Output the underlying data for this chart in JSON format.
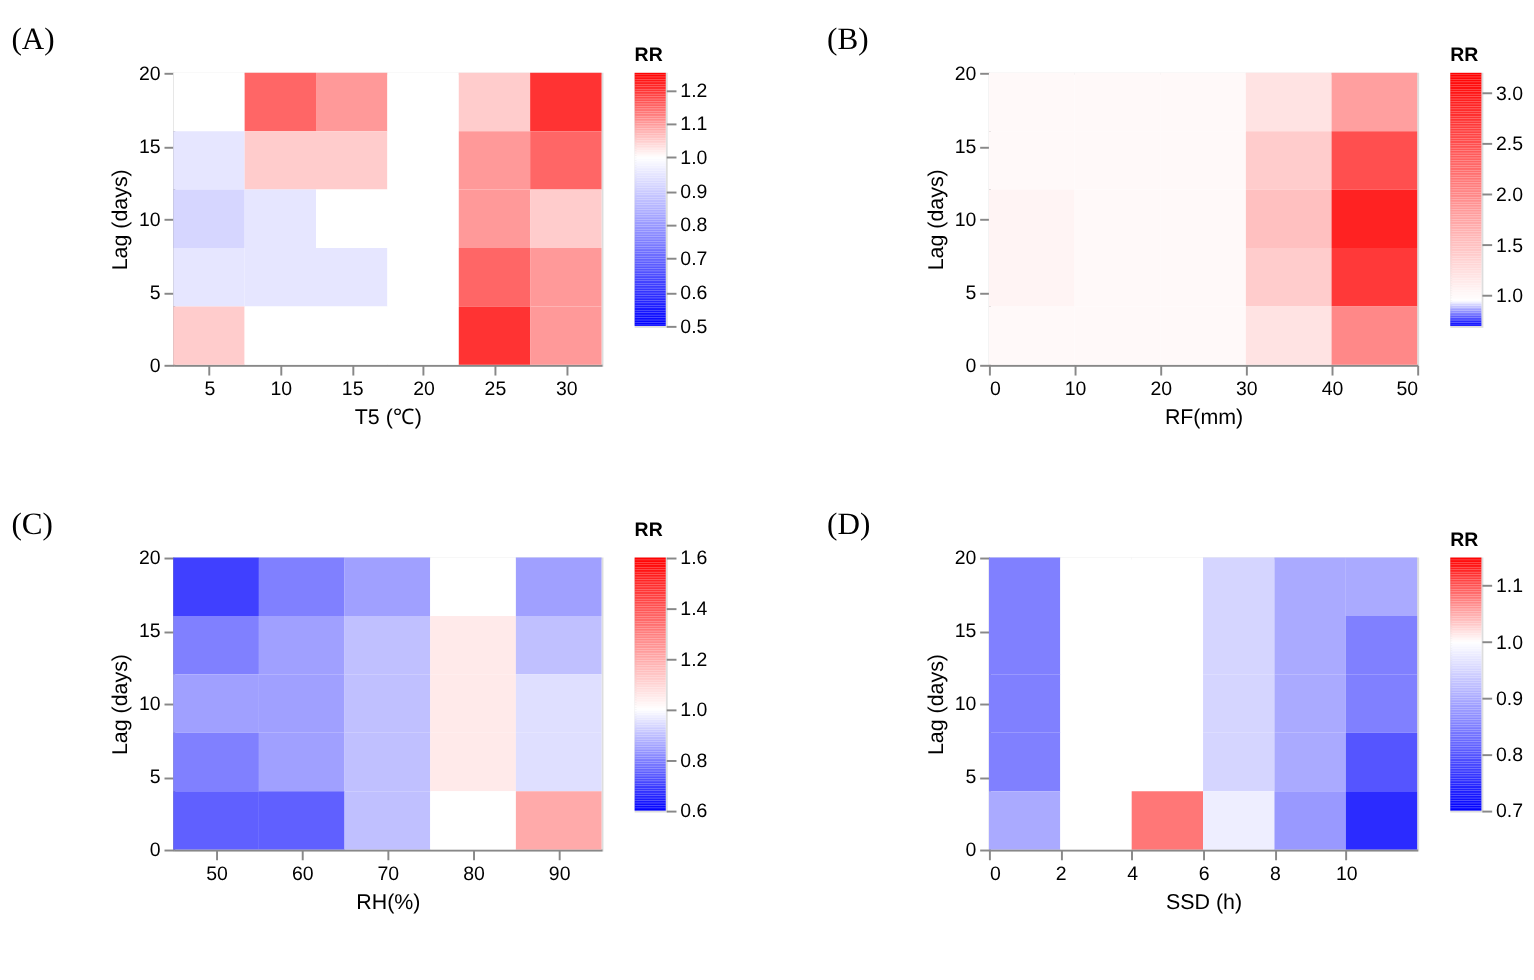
{
  "chart_data": [
    {
      "type": "heatmap",
      "title": "(A)",
      "xlabel": "T5 (℃)",
      "ylabel": "Lag (days)",
      "clabel": "RR",
      "x": [
        5,
        10,
        15,
        20,
        25,
        30
      ],
      "y": [
        18,
        14,
        10,
        6,
        2
      ],
      "cells": [
        [
          1.0,
          1.15,
          1.1,
          1.0,
          1.05,
          1.2
        ],
        [
          0.95,
          1.05,
          1.05,
          1.0,
          1.1,
          1.15
        ],
        [
          0.92,
          0.95,
          1.0,
          1.0,
          1.1,
          1.05
        ],
        [
          0.95,
          0.95,
          0.95,
          1.0,
          1.15,
          1.1
        ],
        [
          1.05,
          1.0,
          1.0,
          1.0,
          1.2,
          1.1
        ]
      ],
      "xlim": [
        2.5,
        32.5
      ],
      "xticks": [
        5,
        10,
        15,
        20,
        25,
        30
      ],
      "ylim": [
        0,
        20
      ],
      "yticks": [
        0,
        5,
        10,
        15,
        20
      ],
      "clim": [
        0.5,
        1.25
      ],
      "cticks": [
        0.5,
        0.6,
        0.7,
        0.8,
        0.9,
        {
          "value": 1,
          "label": "1.0"
        },
        1.1,
        1.2
      ],
      "colors": [
        "#0000ff",
        "#8080ff",
        "#ffffff",
        "#ff0000"
      ]
    },
    {
      "type": "heatmap",
      "title": "(B)",
      "xlabel": "RF(mm)",
      "ylabel": "Lag (days)",
      "clabel": "RR",
      "x": [
        5,
        15,
        25,
        35,
        45
      ],
      "y": [
        18,
        14,
        10,
        6,
        2
      ],
      "cells": [
        [
          1.0,
          1.0,
          1.0,
          1.2,
          1.8
        ],
        [
          1.0,
          1.0,
          1.0,
          1.4,
          2.5
        ],
        [
          1.05,
          1.0,
          1.0,
          1.5,
          2.9
        ],
        [
          1.05,
          1.0,
          1.0,
          1.4,
          2.7
        ],
        [
          1.0,
          1.0,
          1.0,
          1.2,
          2.0
        ]
      ],
      "xlim": [
        0,
        50
      ],
      "xticks": [
        0,
        10,
        20,
        30,
        40,
        50
      ],
      "ylim": [
        0,
        20
      ],
      "yticks": [
        0,
        5,
        10,
        15,
        20
      ],
      "clim": [
        0.7,
        3.2
      ],
      "cticks": [
        {
          "value": 1,
          "label": "1.0"
        },
        1.5,
        {
          "value": 2,
          "label": "2.0"
        },
        2.5,
        {
          "value": 3,
          "label": "3.0"
        }
      ],
      "colors": [
        "#0000ff",
        "#ffffff",
        "#ffe3e3",
        "#ffc6c6",
        "#ffaaaa",
        "#ff8e8e",
        "#ff7171",
        "#ff5555",
        "#ff3939",
        "#ff1c1c",
        "#ff0000"
      ]
    },
    {
      "type": "heatmap",
      "title": "(C)",
      "xlabel": "RH(%)",
      "ylabel": "Lag (days)",
      "clabel": "RR",
      "x": [
        50,
        60,
        70,
        80,
        90
      ],
      "y": [
        18,
        14,
        10,
        6,
        2
      ],
      "cells": [
        [
          0.7,
          0.8,
          0.85,
          1.0,
          0.85
        ],
        [
          0.8,
          0.85,
          0.9,
          1.05,
          0.9
        ],
        [
          0.85,
          0.85,
          0.9,
          1.05,
          0.95
        ],
        [
          0.8,
          0.85,
          0.9,
          1.05,
          0.95
        ],
        [
          0.75,
          0.75,
          0.9,
          1.0,
          1.2
        ]
      ],
      "xlim": [
        45,
        95
      ],
      "xticks": [
        50,
        60,
        70,
        80,
        90
      ],
      "ylim": [
        0,
        20
      ],
      "yticks": [
        0,
        5,
        10,
        15,
        20
      ],
      "clim": [
        0.6,
        1.6
      ],
      "cticks": [
        0.6,
        0.8,
        {
          "value": 1,
          "label": "1.0"
        },
        1.2,
        1.4,
        1.6
      ],
      "colors": [
        "#0000ff",
        "#8080ff",
        "#ffffff",
        "#ffaaaa",
        "#ff5555",
        "#ff0000"
      ]
    },
    {
      "type": "heatmap",
      "title": "(D)",
      "xlabel": "SSD (h)",
      "ylabel": "Lag (days)",
      "clabel": "RR",
      "x": [
        1,
        3,
        5,
        7,
        9,
        11
      ],
      "y": [
        18,
        14,
        10,
        6,
        2
      ],
      "cells": [
        [
          0.85,
          1.0,
          1.0,
          0.95,
          0.9,
          0.9
        ],
        [
          0.85,
          1.0,
          1.0,
          0.95,
          0.9,
          0.85
        ],
        [
          0.85,
          1.0,
          1.0,
          0.95,
          0.9,
          0.85
        ],
        [
          0.85,
          1.0,
          1.0,
          0.95,
          0.9,
          0.8
        ],
        [
          0.9,
          1.0,
          1.08,
          0.98,
          0.88,
          0.75
        ]
      ],
      "xlim": [
        0,
        12
      ],
      "xticks": [
        0,
        2,
        4,
        6,
        8,
        10
      ],
      "ylim": [
        0,
        20
      ],
      "yticks": [
        0,
        5,
        10,
        15,
        20
      ],
      "clim": [
        0.7,
        1.15
      ],
      "cticks": [
        0.7,
        0.8,
        0.9,
        {
          "value": 1,
          "label": "1.0"
        },
        1.1
      ],
      "colors": [
        "#0000ff",
        "#8080ff",
        "#ffffff",
        "#ff0000"
      ]
    }
  ]
}
